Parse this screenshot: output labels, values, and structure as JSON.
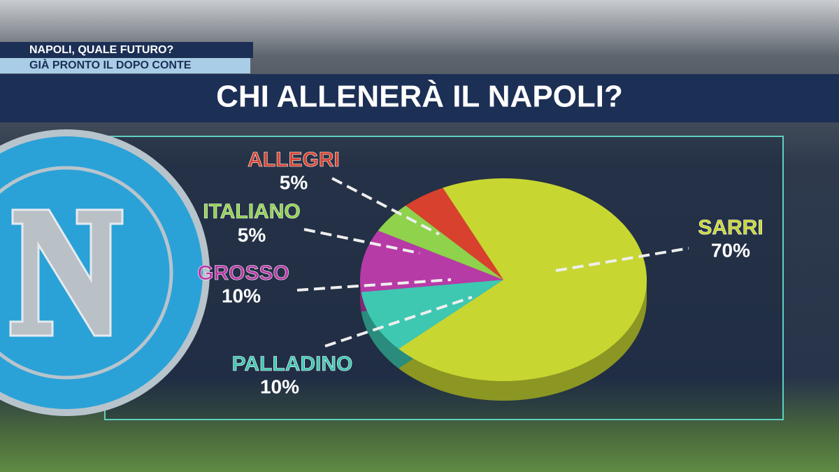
{
  "banner": {
    "headline": "NAPOLI, QUALE FUTURO?",
    "subheadline": "GIÀ PRONTO IL DOPO CONTE"
  },
  "chart_data": {
    "type": "pie",
    "title": "CHI ALLENERÀ IL NAPOLI?",
    "categories": [
      "SARRI",
      "PALLADINO",
      "GROSSO",
      "ITALIANO",
      "ALLEGRI"
    ],
    "values": [
      70,
      10,
      10,
      5,
      5
    ],
    "value_labels": [
      "70%",
      "10%",
      "10%",
      "5%",
      "5%"
    ],
    "colors": [
      "#c8d632",
      "#3ec8b2",
      "#b73ba6",
      "#8fd24c",
      "#d7412e"
    ]
  }
}
